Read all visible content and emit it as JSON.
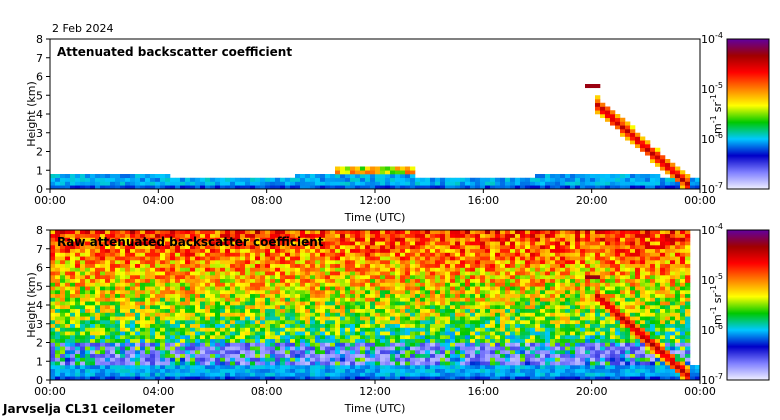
{
  "date": "2 Feb 2024",
  "footer": "Jarvselja CL31 ceilometer",
  "colorbar": {
    "unit_base": "m",
    "unit_base_exp": "-1",
    "unit_sr": "sr",
    "unit_sr_exp": "-1",
    "ticks": [
      {
        "base": "10",
        "exp": "-4",
        "value": 0.0001
      },
      {
        "base": "10",
        "exp": "-5",
        "value": 1e-05
      },
      {
        "base": "10",
        "exp": "-6",
        "value": 1e-06
      },
      {
        "base": "10",
        "exp": "-7",
        "value": 1e-07
      }
    ],
    "scale": "log",
    "colors": [
      "#f0f0ff",
      "#7f7fff",
      "#0000c8",
      "#00c8ff",
      "#00c800",
      "#ffff00",
      "#ff8000",
      "#ff0000",
      "#a00000",
      "#6000a0"
    ]
  },
  "chart_data": [
    {
      "type": "heatmap",
      "title": "Attenuated backscatter coefficient",
      "xlabel": "Time (UTC)",
      "ylabel": "Height (km)",
      "xticks": [
        "00:00",
        "04:00",
        "08:00",
        "12:00",
        "16:00",
        "20:00",
        "00:00"
      ],
      "yticks": [
        "0",
        "1",
        "2",
        "3",
        "4",
        "5",
        "6",
        "7",
        "8"
      ],
      "xlim_hours": [
        0,
        24
      ],
      "ylim": [
        0,
        8
      ],
      "features": {
        "boundary_layer_top_km": 0.7,
        "cloud_layer_hours": [
          10.5,
          13.5
        ],
        "cloud_layer_height_km": 1.0,
        "high_cloud_time": 20.0,
        "high_cloud_height_km": 5.5,
        "precip_band_hours": [
          20.2,
          23.6
        ]
      }
    },
    {
      "type": "heatmap",
      "title": "Raw attenuated backscatter coefficient",
      "xlabel": "Time (UTC)",
      "ylabel": "Height (km)",
      "xticks": [
        "00:00",
        "04:00",
        "08:00",
        "12:00",
        "16:00",
        "20:00",
        "00:00"
      ],
      "yticks": [
        "0",
        "1",
        "2",
        "3",
        "4",
        "5",
        "6",
        "7",
        "8"
      ],
      "xlim_hours": [
        0,
        24
      ],
      "ylim": [
        0,
        8
      ],
      "features": {
        "boundary_layer_top_km": 0.8,
        "noise_level": "high above 1 km",
        "high_cloud_time": 20.0,
        "high_cloud_height_km": 5.5,
        "precip_band_hours": [
          20.2,
          23.6
        ]
      }
    }
  ]
}
